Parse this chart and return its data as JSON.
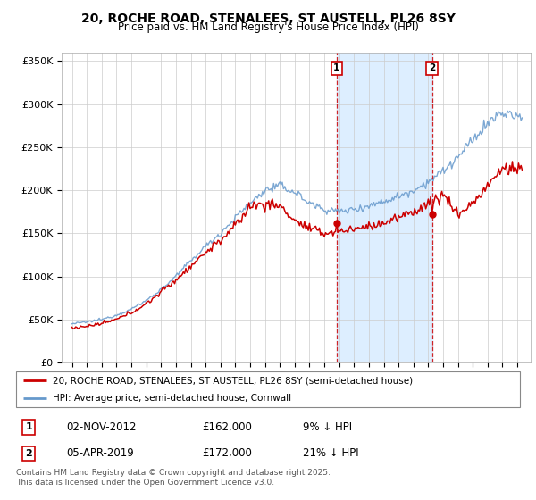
{
  "title": "20, ROCHE ROAD, STENALEES, ST AUSTELL, PL26 8SY",
  "subtitle": "Price paid vs. HM Land Registry's House Price Index (HPI)",
  "red_label": "20, ROCHE ROAD, STENALEES, ST AUSTELL, PL26 8SY (semi-detached house)",
  "blue_label": "HPI: Average price, semi-detached house, Cornwall",
  "footer": "Contains HM Land Registry data © Crown copyright and database right 2025.\nThis data is licensed under the Open Government Licence v3.0.",
  "annotation1_date": "02-NOV-2012",
  "annotation1_price": "£162,000",
  "annotation1_hpi": "9% ↓ HPI",
  "annotation2_date": "05-APR-2019",
  "annotation2_price": "£172,000",
  "annotation2_hpi": "21% ↓ HPI",
  "yticks": [
    0,
    50000,
    100000,
    150000,
    200000,
    250000,
    300000,
    350000
  ],
  "ytick_labels": [
    "£0",
    "£50K",
    "£100K",
    "£150K",
    "£200K",
    "£250K",
    "£300K",
    "£350K"
  ],
  "red_color": "#cc0000",
  "blue_line_color": "#6699cc",
  "vline_color": "#cc0000",
  "highlight_color": "#ddeeff",
  "annotation_box_color": "#cc0000",
  "t_sale1": 2012.833,
  "t_sale2": 2019.25,
  "price1": 162000,
  "price2": 172000
}
